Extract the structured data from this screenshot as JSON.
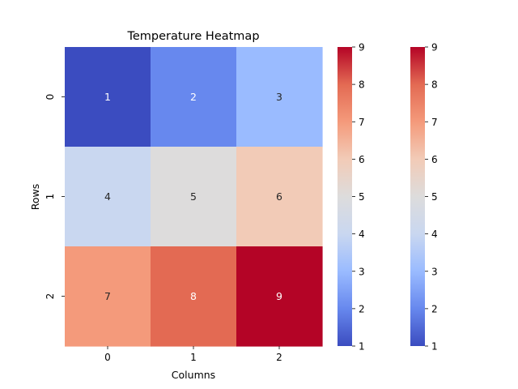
{
  "chart_data": {
    "type": "heatmap",
    "title": "Temperature Heatmap",
    "xlabel": "Columns",
    "ylabel": "Rows",
    "x_categories": [
      "0",
      "1",
      "2"
    ],
    "y_categories": [
      "0",
      "1",
      "2"
    ],
    "values": [
      [
        1,
        2,
        3
      ],
      [
        4,
        5,
        6
      ],
      [
        7,
        8,
        9
      ]
    ],
    "annotations": [
      [
        "1",
        "2",
        "3"
      ],
      [
        "4",
        "5",
        "6"
      ],
      [
        "7",
        "8",
        "9"
      ]
    ],
    "colormap": "coolwarm",
    "vmin": 1,
    "vmax": 9,
    "colorbars": [
      {
        "ticks": [
          "1",
          "2",
          "3",
          "4",
          "5",
          "6",
          "7",
          "8",
          "9"
        ]
      },
      {
        "ticks": [
          "1",
          "2",
          "3",
          "4",
          "5",
          "6",
          "7",
          "8",
          "9"
        ]
      }
    ],
    "cell_colors": [
      [
        "#3b4cc0",
        "#6788ee",
        "#9abbff"
      ],
      [
        "#c9d7f0",
        "#dddcdc",
        "#f2cbb7"
      ],
      [
        "#f49a7b",
        "#e36a53",
        "#b40426"
      ]
    ]
  }
}
